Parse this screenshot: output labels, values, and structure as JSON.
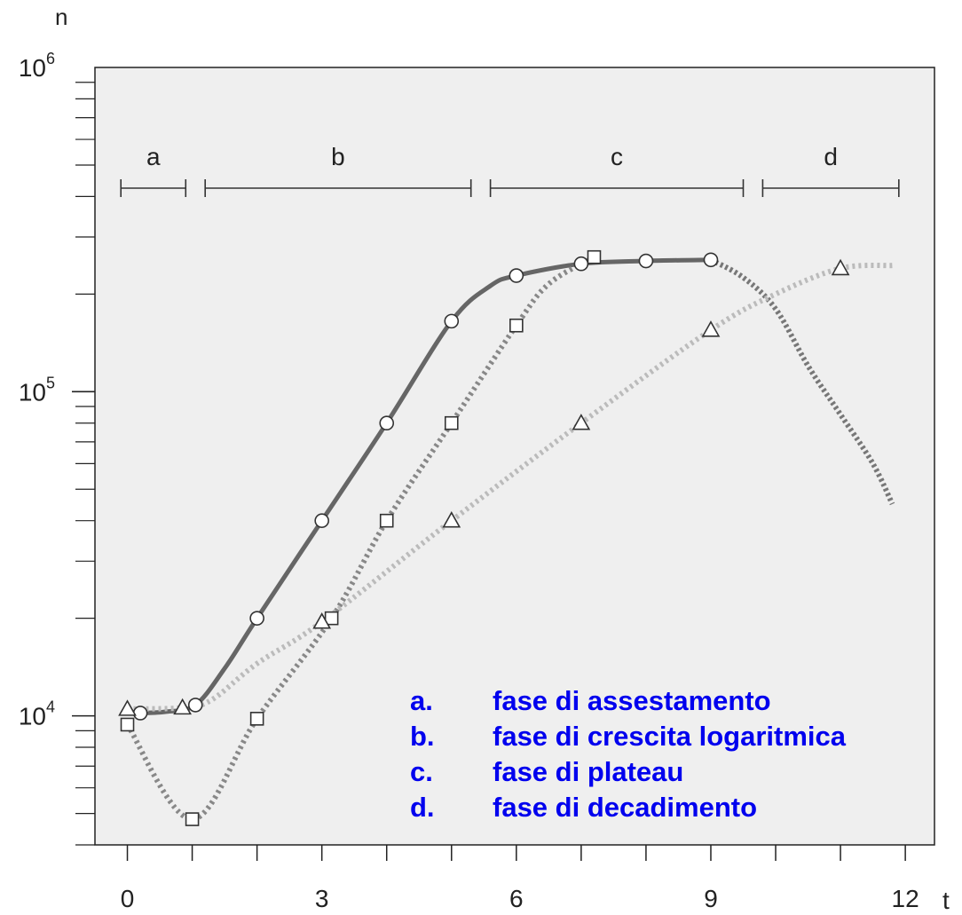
{
  "chart_data": {
    "type": "line",
    "xlabel": "t",
    "ylabel": "n",
    "yscale": "log",
    "xlim": [
      -0.5,
      12.45
    ],
    "ylim": [
      4000,
      1000000
    ],
    "x_ticks": [
      0,
      1,
      2,
      3,
      4,
      5,
      6,
      7,
      8,
      9,
      10,
      11,
      12
    ],
    "x_tick_labels": [
      {
        "x": 0,
        "label": "0"
      },
      {
        "x": 3,
        "label": "3"
      },
      {
        "x": 6,
        "label": "6"
      },
      {
        "x": 9,
        "label": "9"
      },
      {
        "x": 12,
        "label": "12"
      }
    ],
    "y_tick_labels": [
      {
        "y": 10000,
        "base": "10",
        "exp": "4"
      },
      {
        "y": 100000,
        "base": "10",
        "exp": "5"
      },
      {
        "y": 1000000,
        "base": "10",
        "exp": "6"
      }
    ],
    "grid": false,
    "background": "#efefef",
    "phases": [
      {
        "label": "a",
        "start": -0.1,
        "end": 0.9
      },
      {
        "label": "b",
        "start": 1.2,
        "end": 5.3
      },
      {
        "label": "c",
        "start": 5.6,
        "end": 9.5
      },
      {
        "label": "d",
        "start": 9.8,
        "end": 11.9
      }
    ],
    "series": [
      {
        "marker": "circle",
        "line_style": "solid",
        "color": "#666666",
        "points": [
          [
            0.2,
            10200
          ],
          [
            1.05,
            10800
          ],
          [
            2,
            20000
          ],
          [
            3,
            40000
          ],
          [
            4,
            80000
          ],
          [
            5,
            165000
          ],
          [
            6,
            228000
          ],
          [
            7,
            248000
          ],
          [
            8,
            253000
          ],
          [
            9,
            255000
          ]
        ],
        "curve": [
          [
            0.2,
            10200
          ],
          [
            0.6,
            10300
          ],
          [
            1.05,
            10800
          ],
          [
            1.5,
            14000
          ],
          [
            2,
            20000
          ],
          [
            3,
            40000
          ],
          [
            4,
            80000
          ],
          [
            5,
            165000
          ],
          [
            5.6,
            212000
          ],
          [
            6,
            228000
          ],
          [
            7,
            248000
          ],
          [
            8,
            253000
          ],
          [
            9,
            255000
          ]
        ],
        "curve_tail": [
          [
            9,
            255000
          ],
          [
            9.5,
            225000
          ],
          [
            10,
            180000
          ],
          [
            10.5,
            120000
          ],
          [
            11,
            85000
          ],
          [
            11.5,
            60000
          ],
          [
            11.8,
            45000
          ]
        ]
      },
      {
        "marker": "square",
        "line_style": "dotted",
        "color": "#888888",
        "points": [
          [
            0,
            9400
          ],
          [
            1,
            4800
          ],
          [
            2,
            9800
          ],
          [
            3.15,
            20000
          ],
          [
            4,
            40000
          ],
          [
            5,
            80000
          ],
          [
            6,
            160000
          ],
          [
            7.2,
            260000
          ]
        ],
        "curve": [
          [
            0,
            9400
          ],
          [
            1,
            4800
          ],
          [
            2,
            9800
          ],
          [
            3.15,
            20000
          ],
          [
            4,
            40000
          ],
          [
            5,
            80000
          ],
          [
            6,
            160000
          ],
          [
            6.5,
            215000
          ],
          [
            7.2,
            260000
          ]
        ]
      },
      {
        "marker": "triangle",
        "line_style": "dotted",
        "color": "#bbbbbb",
        "points": [
          [
            0,
            10500
          ],
          [
            0.85,
            10600
          ],
          [
            3,
            19500
          ],
          [
            5,
            40000
          ],
          [
            7,
            80000
          ],
          [
            9,
            155000
          ],
          [
            11,
            240000
          ]
        ],
        "curve": [
          [
            0,
            10500
          ],
          [
            0.85,
            10600
          ],
          [
            1.3,
            11200
          ],
          [
            2,
            14500
          ],
          [
            3,
            19500
          ],
          [
            5,
            40000
          ],
          [
            7,
            80000
          ],
          [
            9,
            155000
          ],
          [
            10,
            200000
          ],
          [
            11,
            240000
          ],
          [
            11.8,
            245000
          ]
        ]
      }
    ],
    "legend": {
      "placement": "bottom-right",
      "items": [
        {
          "key": "a.",
          "text": "fase di assestamento"
        },
        {
          "key": "b.",
          "text": "fase di crescita logaritmica"
        },
        {
          "key": "c.",
          "text": "fase di plateau"
        },
        {
          "key": "d.",
          "text": "fase di decadimento"
        }
      ]
    }
  }
}
